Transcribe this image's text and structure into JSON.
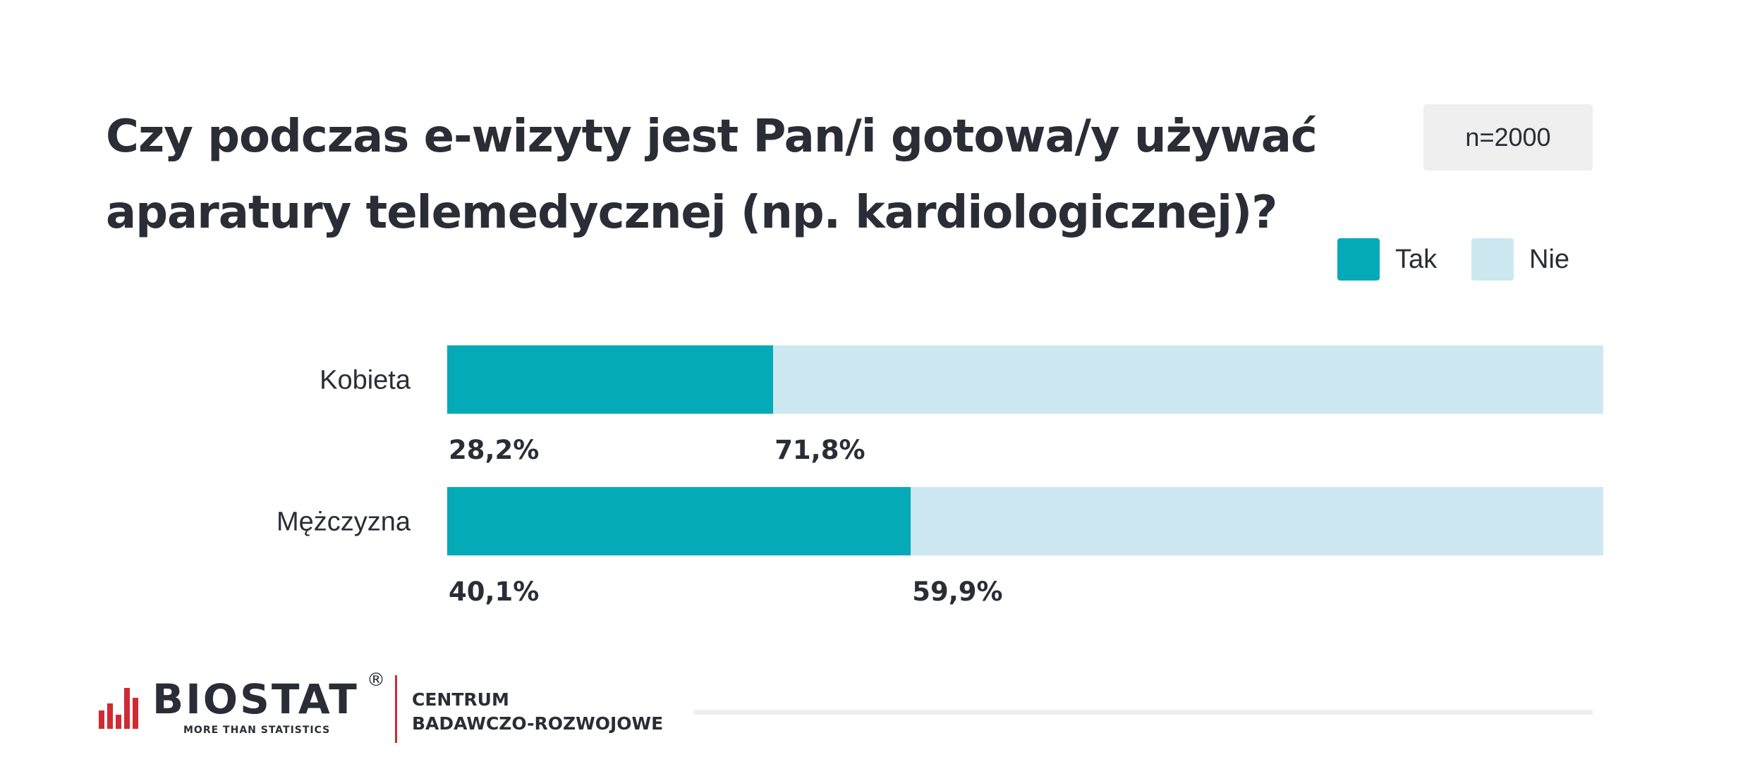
{
  "header": {
    "title_line1": "Czy podczas e-wizyty jest Pan/i gotowa/y używać",
    "title_line2": "aparatury telemedycznej (np. kardiologicznej)?",
    "sample_size": "n=2000"
  },
  "legend": [
    {
      "label": "Tak",
      "color": "#05aab8"
    },
    {
      "label": "Nie",
      "color": "#cde8f0"
    }
  ],
  "chart_data": {
    "type": "bar",
    "orientation": "horizontal",
    "stacked": true,
    "normalized_percent": true,
    "title": "Czy podczas e-wizyty jest Pan/i gotowa/y używać aparatury telemedycznej (np. kardiologicznej)?",
    "categories": [
      "Kobieta",
      "Mężczyzna"
    ],
    "series": [
      {
        "name": "Tak",
        "color": "#05aab8",
        "values": [
          28.2,
          40.1
        ],
        "labels": [
          "28,2%",
          "40,1%"
        ]
      },
      {
        "name": "Nie",
        "color": "#cde8f0",
        "values": [
          71.8,
          59.9
        ],
        "labels": [
          "71,8%",
          "59,9%"
        ]
      }
    ],
    "xlim": [
      0,
      100
    ],
    "legend_position": "top-right",
    "grid": false
  },
  "footer": {
    "logo_name": "BIOSTAT",
    "logo_registered": "®",
    "logo_tagline": "MORE THAN STATISTICS",
    "center_line1": "CENTRUM",
    "center_line2": "BADAWCZO-ROZWOJOWE",
    "brand_red": "#d12a33"
  }
}
